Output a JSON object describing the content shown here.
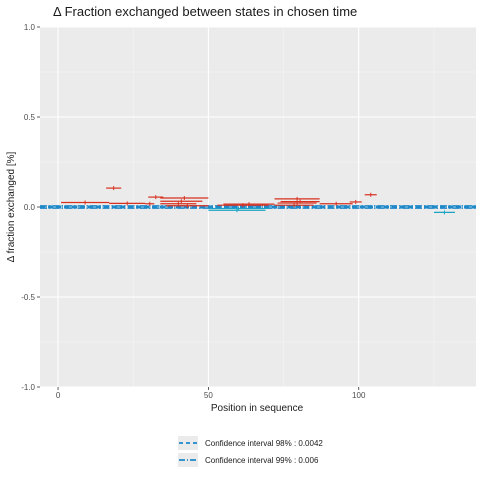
{
  "chart_data": {
    "type": "scatter",
    "title": "Δ Fraction exchanged between states in chosen time",
    "xlabel": "Position in sequence",
    "ylabel": "Δ fraction exchanged [%]",
    "xlim": [
      -6,
      139
    ],
    "ylim": [
      -1.0,
      1.0
    ],
    "x_ticks": [
      0,
      50,
      100
    ],
    "y_ticks": [
      1.0,
      0.5,
      0.0,
      -0.5,
      -1.0
    ],
    "y_tick_labels": [
      "1.0",
      "0.5",
      "0.0",
      "-0.5",
      "-1.0"
    ],
    "grid": true,
    "colors": {
      "positive": "#d7301f",
      "negative": "#1aa3c4",
      "ci_line": "#1e88c8",
      "panel": "#ebebeb",
      "grid_major": "#ffffff"
    },
    "positive_peptides": [
      {
        "start": 1,
        "end": 17,
        "value": 0.025
      },
      {
        "start": 16,
        "end": 21,
        "value": 0.105
      },
      {
        "start": 17,
        "end": 29,
        "value": 0.02
      },
      {
        "start": 29,
        "end": 32,
        "value": 0.018
      },
      {
        "start": 30,
        "end": 35,
        "value": 0.055
      },
      {
        "start": 34,
        "end": 50,
        "value": 0.05
      },
      {
        "start": 34,
        "end": 48,
        "value": 0.032
      },
      {
        "start": 34,
        "end": 46,
        "value": 0.018
      },
      {
        "start": 36,
        "end": 50,
        "value": 0.007
      },
      {
        "start": 53,
        "end": 70,
        "value": 0.01
      },
      {
        "start": 55,
        "end": 72,
        "value": 0.016
      },
      {
        "start": 72,
        "end": 87,
        "value": 0.045
      },
      {
        "start": 74,
        "end": 87,
        "value": 0.03
      },
      {
        "start": 73,
        "end": 86,
        "value": 0.022
      },
      {
        "start": 72,
        "end": 85,
        "value": 0.01
      },
      {
        "start": 87,
        "end": 98,
        "value": 0.018
      },
      {
        "start": 97,
        "end": 101,
        "value": 0.028
      },
      {
        "start": 102,
        "end": 106,
        "value": 0.068
      }
    ],
    "negative_peptides": [
      {
        "start": 50,
        "end": 69,
        "value": -0.018
      },
      {
        "start": 50,
        "end": 70,
        "value": -0.008
      },
      {
        "start": 125,
        "end": 132,
        "value": -0.03
      }
    ],
    "confidence_intervals": [
      {
        "label": "Confidence interval 98% : 0.0042",
        "value": 0.0042,
        "linetype": "dashed"
      },
      {
        "label": "Confidence interval 99% : 0.006",
        "value": 0.006,
        "linetype": "dotdash"
      }
    ]
  }
}
